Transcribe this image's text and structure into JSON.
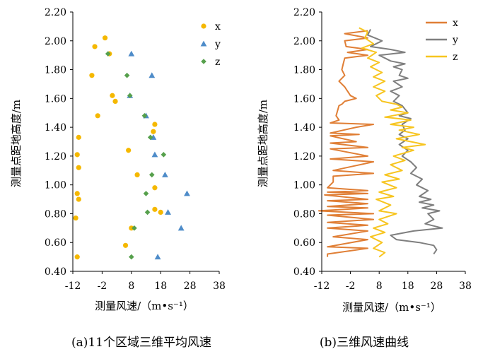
{
  "chart_data": [
    {
      "type": "scatter",
      "xlabel": "测量风速/（m•s⁻¹）",
      "ylabel": "测量点距地高度/m",
      "xlim": [
        -12,
        38
      ],
      "ylim": [
        0.4,
        2.2
      ],
      "x_ticks": [
        "-12",
        "-2",
        "8",
        "18",
        "28",
        "38"
      ],
      "y_ticks": [
        "0.40",
        "0.60",
        "0.80",
        "1.00",
        "1.20",
        "1.40",
        "1.60",
        "1.80",
        "2.00",
        "2.20"
      ],
      "legend_position": "top-right",
      "caption": "(a)11个区域三维平均风速",
      "series": [
        {
          "name": "x",
          "color": "#f5b800",
          "marker": "circle",
          "points": [
            [
              -1,
              2.02
            ],
            [
              -4.5,
              1.96
            ],
            [
              0.5,
              1.91
            ],
            [
              -5.5,
              1.76
            ],
            [
              1.5,
              1.62
            ],
            [
              2.5,
              1.58
            ],
            [
              -3.5,
              1.48
            ],
            [
              -10,
              1.33
            ],
            [
              16,
              1.42
            ],
            [
              15.5,
              1.37
            ],
            [
              7,
              1.24
            ],
            [
              -10.5,
              1.21
            ],
            [
              -10,
              1.12
            ],
            [
              10,
              1.07
            ],
            [
              16,
              0.98
            ],
            [
              -10.5,
              0.94
            ],
            [
              -10,
              0.9
            ],
            [
              16,
              0.83
            ],
            [
              18,
              0.81
            ],
            [
              -11,
              0.77
            ],
            [
              8,
              0.7
            ],
            [
              6,
              0.58
            ],
            [
              -10.5,
              0.5
            ]
          ]
        },
        {
          "name": "y",
          "color": "#4e8cc9",
          "marker": "triangle",
          "points": [
            [
              8,
              1.91
            ],
            [
              15,
              1.76
            ],
            [
              7.5,
              1.62
            ],
            [
              13,
              1.48
            ],
            [
              15.5,
              1.33
            ],
            [
              16,
              1.21
            ],
            [
              19.5,
              1.07
            ],
            [
              27,
              0.94
            ],
            [
              20.5,
              0.81
            ],
            [
              25,
              0.7
            ],
            [
              17,
              0.5
            ]
          ]
        },
        {
          "name": "z",
          "color": "#56a04c",
          "marker": "diamond",
          "points": [
            [
              0,
              1.91
            ],
            [
              6.5,
              1.76
            ],
            [
              7.5,
              1.62
            ],
            [
              12.5,
              1.48
            ],
            [
              14.5,
              1.33
            ],
            [
              19,
              1.21
            ],
            [
              15,
              1.07
            ],
            [
              13,
              0.94
            ],
            [
              13.5,
              0.81
            ],
            [
              9,
              0.7
            ],
            [
              8,
              0.5
            ]
          ]
        }
      ]
    },
    {
      "type": "line",
      "xlabel": "测量风速/（m•s⁻¹）",
      "ylabel": "测量点距地高度/m",
      "xlim": [
        -12,
        38
      ],
      "ylim": [
        0.4,
        2.2
      ],
      "x_ticks": [
        "-12",
        "-2",
        "8",
        "18",
        "28",
        "38"
      ],
      "y_ticks": [
        "0.40",
        "0.60",
        "0.80",
        "1.00",
        "1.20",
        "1.40",
        "1.60",
        "1.80",
        "2.00",
        "2.20"
      ],
      "legend_position": "top-right",
      "caption": "(b)三维风速曲线",
      "series": [
        {
          "name": "x",
          "color": "#e07f36",
          "points": [
            [
              4,
              2.07
            ],
            [
              -4,
              2.05
            ],
            [
              4,
              2.02
            ],
            [
              -4,
              2.0
            ],
            [
              -3.5,
              1.96
            ],
            [
              4,
              1.94
            ],
            [
              -3,
              1.92
            ],
            [
              4,
              1.9
            ],
            [
              -4,
              1.88
            ],
            [
              -4.5,
              1.84
            ],
            [
              -5,
              1.8
            ],
            [
              -4,
              1.76
            ],
            [
              -6,
              1.72
            ],
            [
              -4,
              1.68
            ],
            [
              -3,
              1.65
            ],
            [
              -2,
              1.62
            ],
            [
              0,
              1.6
            ],
            [
              -4,
              1.58
            ],
            [
              -5,
              1.56
            ],
            [
              -6,
              1.55
            ],
            [
              -7,
              1.48
            ],
            [
              -6,
              1.45
            ],
            [
              -9,
              1.43
            ],
            [
              6,
              1.42
            ],
            [
              0,
              1.4
            ],
            [
              -9,
              1.36
            ],
            [
              1,
              1.35
            ],
            [
              -9,
              1.34
            ],
            [
              0,
              1.3
            ],
            [
              -9,
              1.29
            ],
            [
              4,
              1.26
            ],
            [
              -9,
              1.25
            ],
            [
              4,
              1.2
            ],
            [
              -9,
              1.18
            ],
            [
              6,
              1.16
            ],
            [
              -8,
              1.1
            ],
            [
              6,
              1.08
            ],
            [
              -8,
              1.06
            ],
            [
              -8,
              1.02
            ],
            [
              -10,
              0.98
            ],
            [
              4,
              0.96
            ],
            [
              -10,
              0.95
            ],
            [
              4,
              0.94
            ],
            [
              -11,
              0.93
            ],
            [
              4,
              0.9
            ],
            [
              -10,
              0.89
            ],
            [
              4,
              0.87
            ],
            [
              -10,
              0.85
            ],
            [
              4,
              0.84
            ],
            [
              -13,
              0.82
            ],
            [
              6,
              0.8
            ],
            [
              -10,
              0.79
            ],
            [
              6,
              0.76
            ],
            [
              -10,
              0.74
            ],
            [
              4,
              0.72
            ],
            [
              -10,
              0.7
            ],
            [
              4,
              0.68
            ],
            [
              -8,
              0.64
            ],
            [
              4,
              0.62
            ],
            [
              -10,
              0.57
            ],
            [
              4,
              0.56
            ],
            [
              -10,
              0.52
            ],
            [
              -10,
              0.5
            ]
          ]
        },
        {
          "name": "y",
          "color": "#7f7f7f",
          "points": [
            [
              5,
              2.08
            ],
            [
              4,
              2.04
            ],
            [
              9,
              2.0
            ],
            [
              5,
              1.96
            ],
            [
              12,
              1.94
            ],
            [
              17,
              1.92
            ],
            [
              8,
              1.9
            ],
            [
              10,
              1.88
            ],
            [
              12,
              1.86
            ],
            [
              17,
              1.84
            ],
            [
              13,
              1.82
            ],
            [
              16,
              1.8
            ],
            [
              15,
              1.76
            ],
            [
              18,
              1.74
            ],
            [
              13,
              1.72
            ],
            [
              16,
              1.68
            ],
            [
              12,
              1.65
            ],
            [
              15,
              1.62
            ],
            [
              13,
              1.58
            ],
            [
              16,
              1.55
            ],
            [
              18,
              1.5
            ],
            [
              15,
              1.48
            ],
            [
              19,
              1.46
            ],
            [
              16,
              1.42
            ],
            [
              17,
              1.38
            ],
            [
              15,
              1.35
            ],
            [
              18,
              1.32
            ],
            [
              15,
              1.28
            ],
            [
              18,
              1.24
            ],
            [
              16,
              1.2
            ],
            [
              19,
              1.16
            ],
            [
              21,
              1.12
            ],
            [
              19,
              1.08
            ],
            [
              23,
              1.04
            ],
            [
              21,
              1.0
            ],
            [
              25,
              0.96
            ],
            [
              22,
              0.92
            ],
            [
              26,
              0.9
            ],
            [
              22,
              0.88
            ],
            [
              27,
              0.86
            ],
            [
              23,
              0.84
            ],
            [
              29,
              0.82
            ],
            [
              25,
              0.8
            ],
            [
              27,
              0.76
            ],
            [
              24,
              0.73
            ],
            [
              30,
              0.7
            ],
            [
              20,
              0.68
            ],
            [
              12,
              0.65
            ],
            [
              14,
              0.62
            ],
            [
              22,
              0.6
            ],
            [
              27,
              0.58
            ],
            [
              28,
              0.55
            ],
            [
              27,
              0.52
            ]
          ]
        },
        {
          "name": "z",
          "color": "#f7c520",
          "points": [
            [
              1,
              2.09
            ],
            [
              4,
              2.06
            ],
            [
              3,
              2.02
            ],
            [
              6,
              1.98
            ],
            [
              2,
              1.95
            ],
            [
              7,
              1.92
            ],
            [
              4,
              1.88
            ],
            [
              8,
              1.85
            ],
            [
              5,
              1.82
            ],
            [
              9,
              1.78
            ],
            [
              6,
              1.75
            ],
            [
              10,
              1.72
            ],
            [
              6,
              1.68
            ],
            [
              10,
              1.65
            ],
            [
              7,
              1.62
            ],
            [
              9,
              1.58
            ],
            [
              14,
              1.56
            ],
            [
              16,
              1.54
            ],
            [
              12,
              1.52
            ],
            [
              18,
              1.5
            ],
            [
              10,
              1.47
            ],
            [
              19,
              1.45
            ],
            [
              12,
              1.42
            ],
            [
              20,
              1.4
            ],
            [
              15,
              1.38
            ],
            [
              22,
              1.35
            ],
            [
              14,
              1.32
            ],
            [
              24,
              1.28
            ],
            [
              16,
              1.26
            ],
            [
              20,
              1.24
            ],
            [
              13,
              1.2
            ],
            [
              17,
              1.17
            ],
            [
              12,
              1.14
            ],
            [
              16,
              1.1
            ],
            [
              10,
              1.07
            ],
            [
              15,
              1.04
            ],
            [
              9,
              1.02
            ],
            [
              14,
              0.98
            ],
            [
              8,
              0.95
            ],
            [
              13,
              0.92
            ],
            [
              7,
              0.9
            ],
            [
              12,
              0.86
            ],
            [
              8,
              0.82
            ],
            [
              14,
              0.8
            ],
            [
              8,
              0.76
            ],
            [
              11,
              0.73
            ],
            [
              6,
              0.7
            ],
            [
              10,
              0.67
            ],
            [
              5,
              0.64
            ],
            [
              9,
              0.6
            ],
            [
              6,
              0.56
            ],
            [
              10,
              0.53
            ],
            [
              8,
              0.5
            ]
          ]
        }
      ]
    }
  ]
}
